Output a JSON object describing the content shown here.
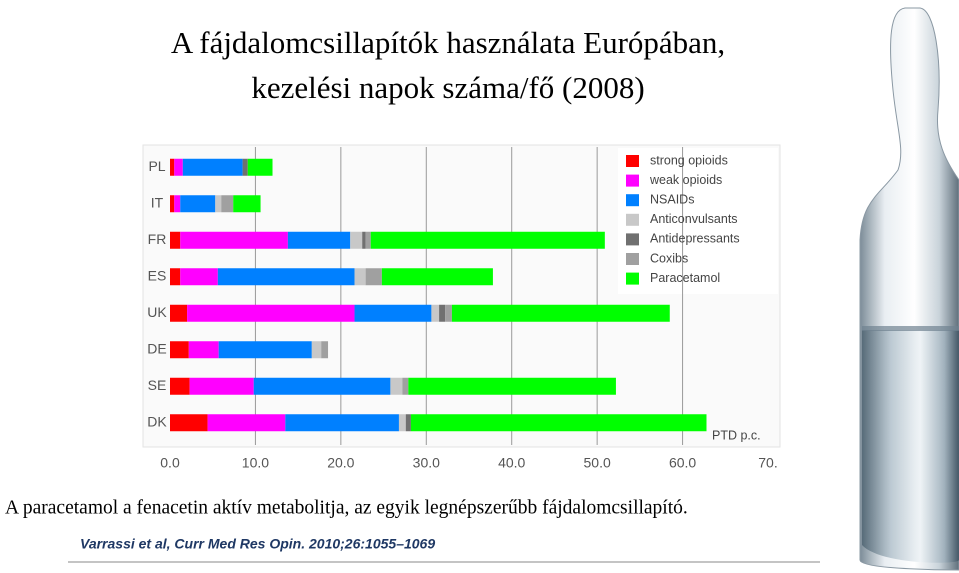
{
  "chart_data": {
    "type": "stacked-hbar",
    "title_lines": [
      "A fájdalomcsillapítók használata Európában,",
      "kezelési napok száma/fő (2008)"
    ],
    "caption": "A paracetamol a fenacetin aktív metabolitja, az egyik legnépszerűbb fájdalomcsillapító.",
    "citation": "Varrassi et al, Curr Med Res Opin. 2010;26:1055–1069",
    "x_label": "PTD p.c.",
    "categories": [
      "PL",
      "IT",
      "FR",
      "ES",
      "UK",
      "DE",
      "SE",
      "DK"
    ],
    "series": [
      {
        "name": "strong opioids",
        "color": "#ff0000",
        "values": [
          0.5,
          0.5,
          1.2,
          1.2,
          2.0,
          2.2,
          2.3,
          4.4
        ]
      },
      {
        "name": "weak opioids",
        "color": "#ff00ff",
        "values": [
          1.0,
          0.7,
          12.6,
          4.4,
          19.6,
          3.5,
          7.5,
          9.1
        ]
      },
      {
        "name": "NSAIDs",
        "color": "#0080ff",
        "values": [
          7.0,
          4.1,
          7.3,
          16.0,
          9.0,
          10.9,
          16.0,
          13.3
        ]
      },
      {
        "name": "Anticonvulsants",
        "color": "#c8c8c8",
        "values": [
          0,
          0.7,
          1.4,
          1.3,
          0.9,
          1.1,
          1.4,
          0.8
        ]
      },
      {
        "name": "Antidepressants",
        "color": "#707070",
        "values": [
          0.6,
          0,
          0.4,
          0,
          0.7,
          0,
          0,
          0.6
        ]
      },
      {
        "name": "Coxibs",
        "color": "#a0a0a0",
        "values": [
          0,
          1.4,
          0.6,
          1.9,
          0.8,
          0.8,
          0.7,
          0
        ]
      },
      {
        "name": "Paracetamol",
        "color": "#00ff00",
        "values": [
          2.9,
          3.2,
          27.4,
          13.0,
          25.5,
          0,
          24.3,
          34.6
        ]
      }
    ],
    "xlim": [
      0,
      70
    ],
    "xticks": [
      {
        "value": 0,
        "label": "0.0"
      },
      {
        "value": 10,
        "label": "10.0"
      },
      {
        "value": 20,
        "label": "20.0"
      },
      {
        "value": 30,
        "label": "30.0"
      },
      {
        "value": 40,
        "label": "40.0"
      },
      {
        "value": 50,
        "label": "50.0"
      },
      {
        "value": 60,
        "label": "60.0"
      },
      {
        "value": 70,
        "label": "70."
      }
    ],
    "grid": true,
    "legend": "top-right"
  }
}
